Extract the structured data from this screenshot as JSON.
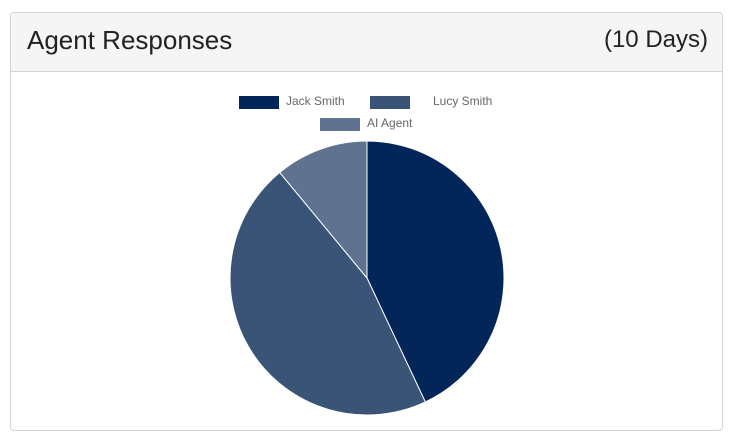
{
  "panel": {
    "title": "Agent Responses",
    "range": "(10 Days)"
  },
  "chart_data": {
    "type": "pie",
    "categories": [
      "Jack Smith",
      "Lucy Smith",
      "AI Agent"
    ],
    "values": [
      43,
      46,
      11
    ],
    "colors": [
      "#02255a",
      "#3a5478",
      "#5f7390"
    ],
    "legend": "top"
  }
}
